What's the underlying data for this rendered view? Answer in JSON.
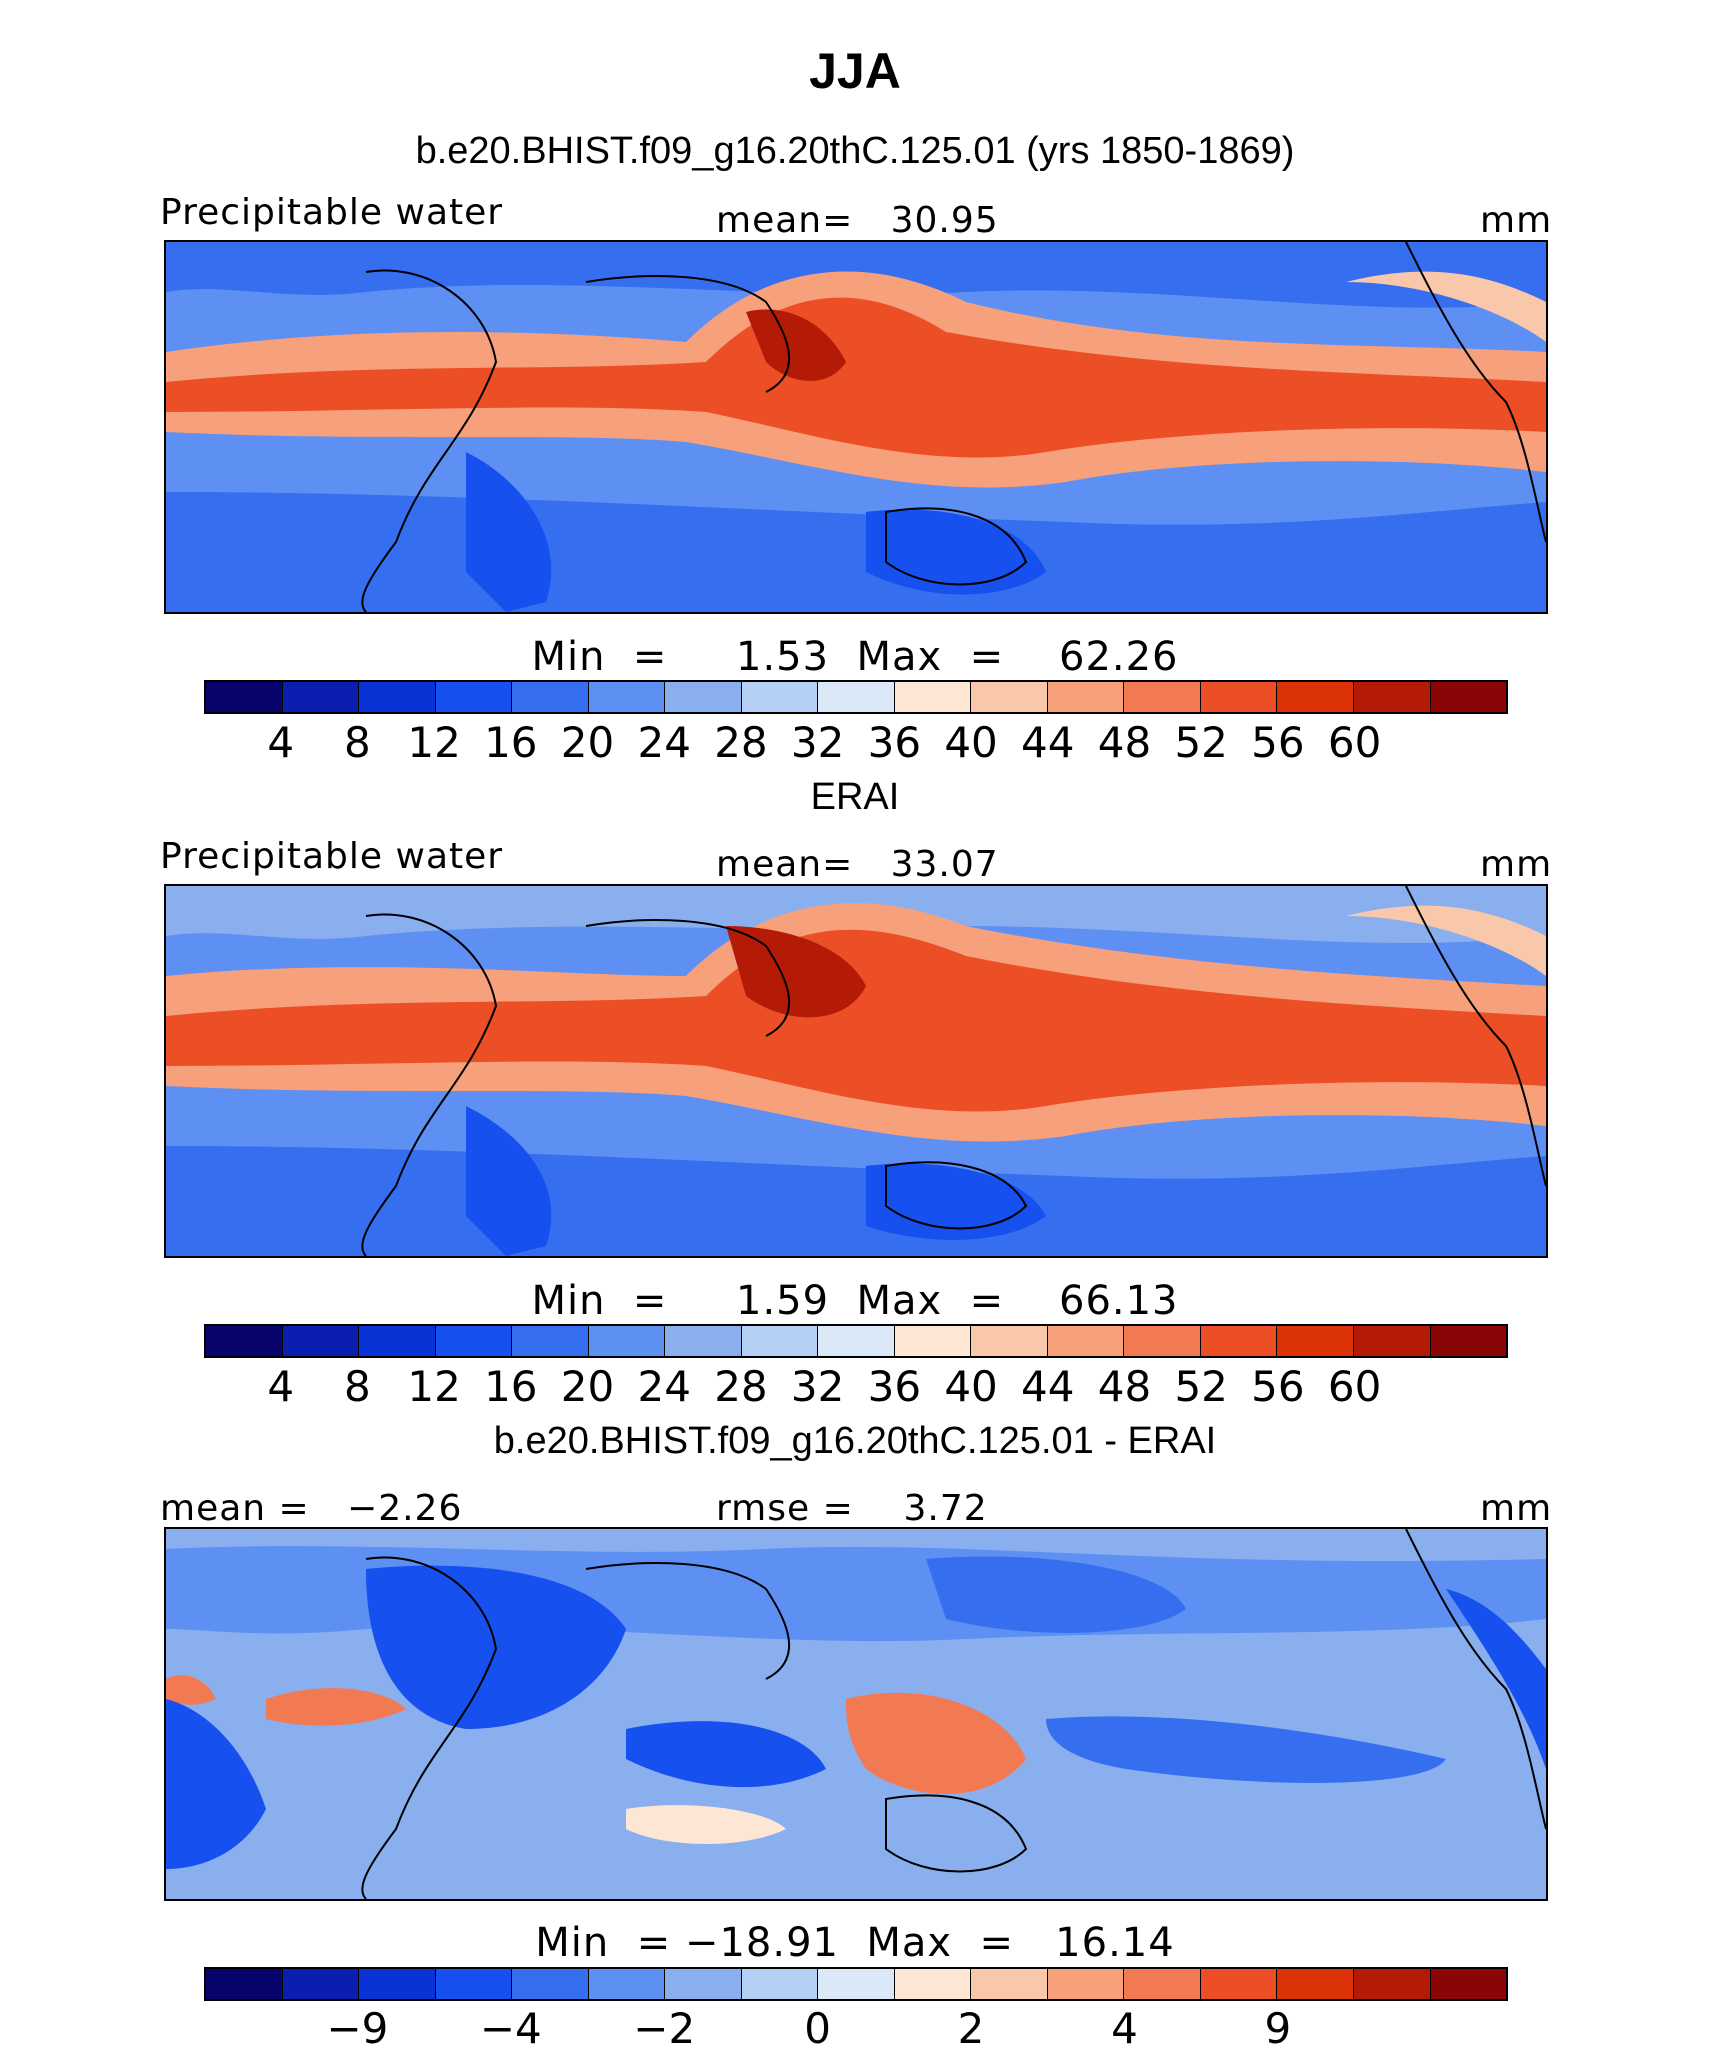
{
  "title": "JJA",
  "panels": [
    {
      "heading": "b.e20.BHIST.f09_g16.20thC.125.01 (yrs 1850-1869)",
      "left_label": "Precipitable water",
      "center_label": "mean=   30.95",
      "units": "mm",
      "minmax": "Min  =     1.53  Max  =    62.26",
      "colorbar": [
        "#08046d",
        "#0a1fb0",
        "#0a33d6",
        "#1650ee",
        "#356ff0",
        "#5e8ff3",
        "#8aafef",
        "#b6cff4",
        "#dbe8f8",
        "#fde6d4",
        "#f9c7aa",
        "#f6a07c",
        "#f27a52",
        "#ec4f26",
        "#dc3208",
        "#b41b06",
        "#8a0606"
      ],
      "ticks": [
        "4",
        "8",
        "12",
        "16",
        "20",
        "24",
        "28",
        "32",
        "36",
        "40",
        "44",
        "48",
        "52",
        "56",
        "60"
      ],
      "map_palette": {
        "cool": "#1650ee",
        "mid": "#b6cff4",
        "warm": "#ec4f26",
        "hot": "#b41b06"
      }
    },
    {
      "heading": "ERAI",
      "left_label": "Precipitable water",
      "center_label": "mean=   33.07",
      "units": "mm",
      "minmax": "Min  =     1.59  Max  =    66.13",
      "colorbar": [
        "#08046d",
        "#0a1fb0",
        "#0a33d6",
        "#1650ee",
        "#356ff0",
        "#5e8ff3",
        "#8aafef",
        "#b6cff4",
        "#dbe8f8",
        "#fde6d4",
        "#f9c7aa",
        "#f6a07c",
        "#f27a52",
        "#ec4f26",
        "#dc3208",
        "#b41b06",
        "#8a0606"
      ],
      "ticks": [
        "4",
        "8",
        "12",
        "16",
        "20",
        "24",
        "28",
        "32",
        "36",
        "40",
        "44",
        "48",
        "52",
        "56",
        "60"
      ],
      "map_palette": {
        "cool": "#1650ee",
        "mid": "#b6cff4",
        "warm": "#ec4f26",
        "hot": "#b41b06"
      }
    },
    {
      "heading": "b.e20.BHIST.f09_g16.20thC.125.01 - ERAI",
      "left_label": "mean =   −2.26",
      "center_label": "rmse =    3.72",
      "units": "mm",
      "minmax": "Min  = −18.91  Max  =   16.14",
      "colorbar": [
        "#08046d",
        "#0a1fb0",
        "#0a33d6",
        "#1650ee",
        "#356ff0",
        "#5e8ff3",
        "#8aafef",
        "#b6cff4",
        "#dbe8f8",
        "#fde6d4",
        "#f9c7aa",
        "#f6a07c",
        "#f27a52",
        "#ec4f26",
        "#dc3208",
        "#b41b06",
        "#8a0606"
      ],
      "ticks": [
        "−9",
        "−4",
        "−2",
        "0",
        "2",
        "4",
        "9"
      ],
      "map_palette": {
        "cool": "#5e8ff3",
        "mid": "#dbe8f8",
        "warm": "#f27a52",
        "hot": "#dc3208"
      }
    }
  ]
}
